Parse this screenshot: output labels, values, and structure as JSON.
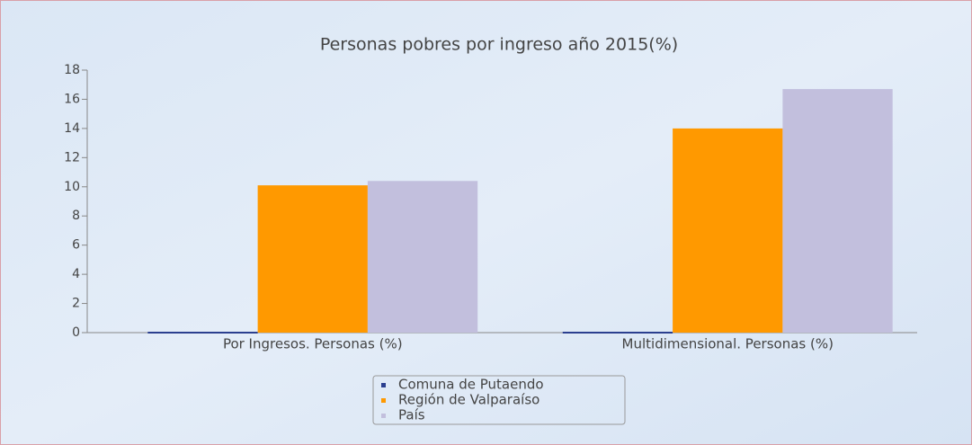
{
  "chart_data": {
    "type": "bar",
    "title": "Personas pobres por ingreso año 2015(%)",
    "categories": [
      "Por Ingresos. Personas (%)",
      "Multidimensional. Personas (%)"
    ],
    "series": [
      {
        "name": "Comuna de Putaendo",
        "color": "#2b3f8f",
        "values": [
          0,
          0
        ]
      },
      {
        "name": "Región de Valparaíso",
        "color": "#ff9900",
        "values": [
          10.1,
          14.0
        ]
      },
      {
        "name": "País",
        "color": "#c2bfdd",
        "values": [
          10.4,
          16.7
        ]
      }
    ],
    "ylim": [
      0,
      18
    ],
    "yticks": [
      0,
      2,
      4,
      6,
      8,
      10,
      12,
      14,
      16,
      18
    ],
    "grid": false
  }
}
